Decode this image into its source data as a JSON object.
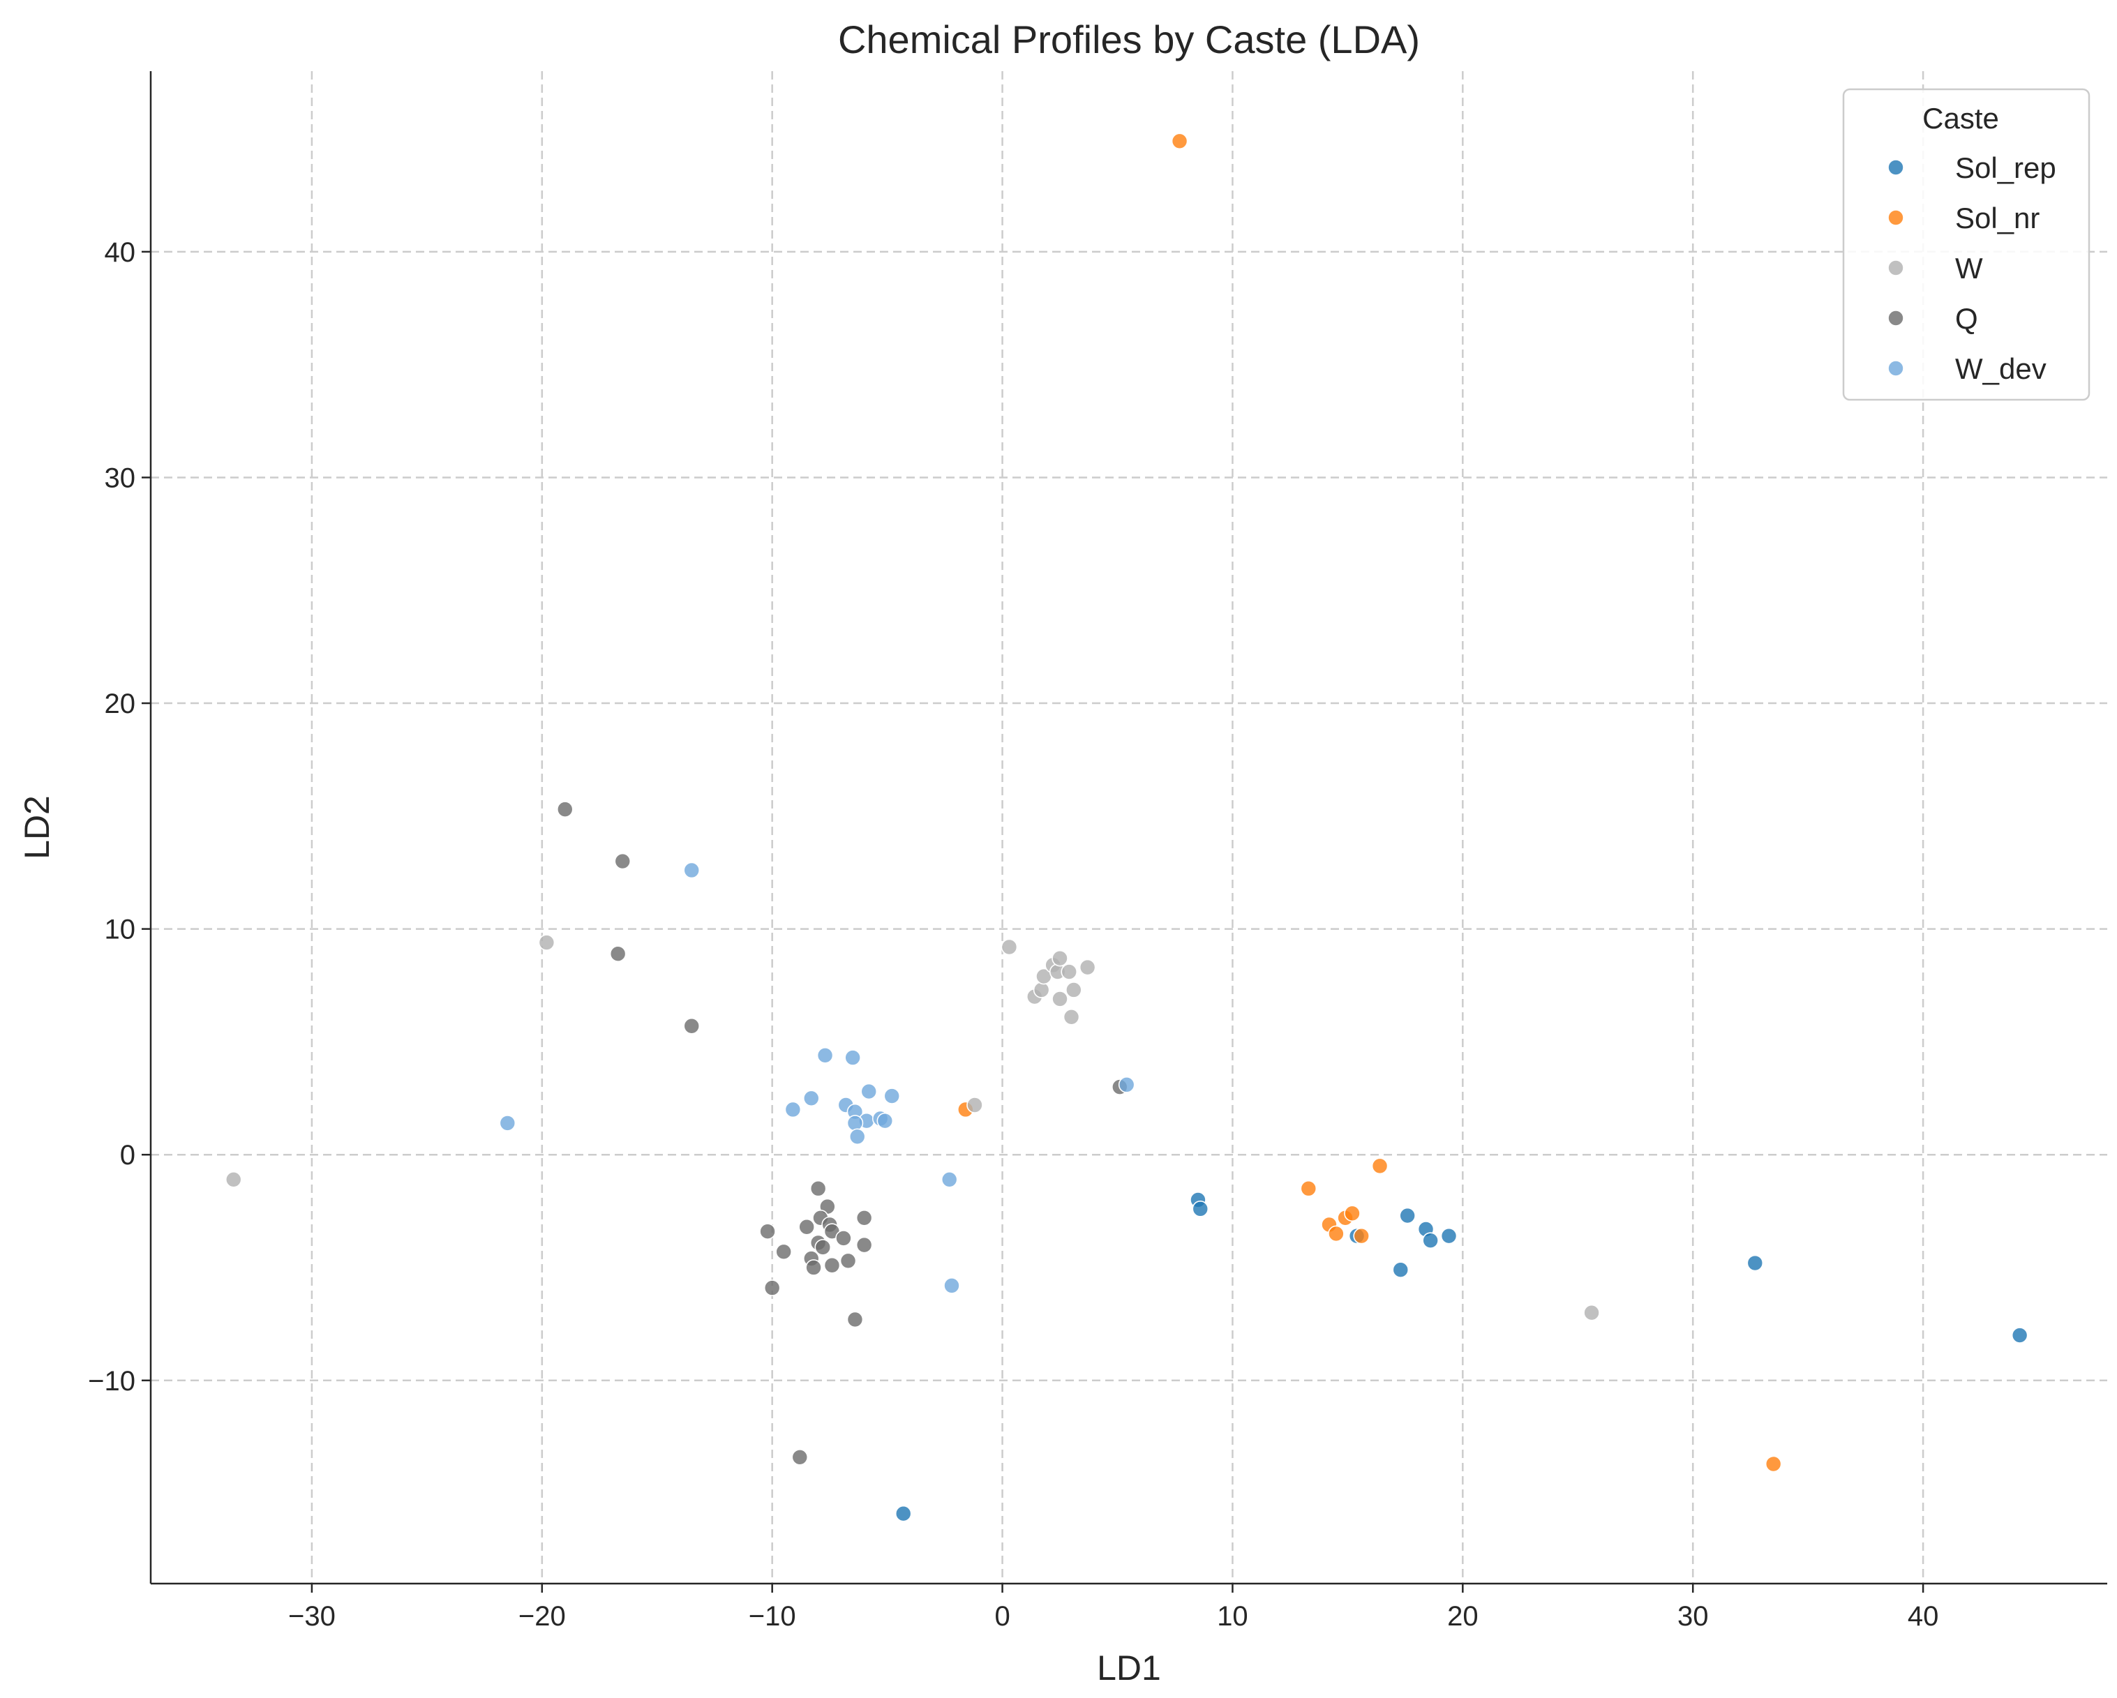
{
  "chart_data": {
    "type": "scatter",
    "title": "Chemical Profiles by Caste (LDA)",
    "xlabel": "LD1",
    "ylabel": "LD2",
    "xlim": [
      -37,
      48
    ],
    "ylim": [
      -19,
      48
    ],
    "xticks": [
      -30,
      -20,
      -10,
      0,
      10,
      20,
      30,
      40
    ],
    "yticks": [
      -10,
      0,
      10,
      20,
      30,
      40
    ],
    "xtick_labels": [
      "−30",
      "−20",
      "−10",
      "0",
      "10",
      "20",
      "30",
      "40"
    ],
    "ytick_labels": [
      "−10",
      "0",
      "10",
      "20",
      "30",
      "40"
    ],
    "grid": true,
    "legend": {
      "title": "Caste",
      "placement": "top-right"
    },
    "series": [
      {
        "name": "Sol_rep",
        "color": "#1f77b4",
        "points": [
          [
            8.5,
            -2.0
          ],
          [
            8.6,
            -2.4
          ],
          [
            17.3,
            -5.1
          ],
          [
            17.6,
            -2.7
          ],
          [
            18.4,
            -3.3
          ],
          [
            18.6,
            -3.8
          ],
          [
            19.4,
            -3.6
          ],
          [
            15.4,
            -3.6
          ],
          [
            32.7,
            -4.8
          ],
          [
            44.2,
            -8.0
          ],
          [
            -4.3,
            -15.9
          ]
        ]
      },
      {
        "name": "Sol_nr",
        "color": "#ff7f0e",
        "points": [
          [
            7.7,
            44.9
          ],
          [
            13.3,
            -1.5
          ],
          [
            14.2,
            -3.1
          ],
          [
            14.5,
            -3.5
          ],
          [
            14.9,
            -2.8
          ],
          [
            15.2,
            -2.6
          ],
          [
            15.6,
            -3.6
          ],
          [
            16.4,
            -0.5
          ],
          [
            -1.6,
            2.0
          ],
          [
            33.5,
            -13.7
          ]
        ]
      },
      {
        "name": "W",
        "color": "#b0b0b0",
        "points": [
          [
            0.3,
            9.2
          ],
          [
            1.4,
            7.0
          ],
          [
            1.7,
            7.3
          ],
          [
            1.8,
            7.9
          ],
          [
            2.2,
            8.4
          ],
          [
            2.4,
            8.1
          ],
          [
            2.5,
            8.7
          ],
          [
            2.5,
            6.9
          ],
          [
            2.9,
            8.1
          ],
          [
            3.0,
            6.1
          ],
          [
            3.1,
            7.3
          ],
          [
            3.7,
            8.3
          ],
          [
            -19.8,
            9.4
          ],
          [
            -33.4,
            -1.1
          ],
          [
            -1.2,
            2.2
          ],
          [
            25.6,
            -7.0
          ]
        ]
      },
      {
        "name": "Q",
        "color": "#6b6b6b",
        "points": [
          [
            -19.0,
            15.3
          ],
          [
            -16.5,
            13.0
          ],
          [
            -16.7,
            8.9
          ],
          [
            -13.5,
            5.7
          ],
          [
            5.1,
            3.0
          ],
          [
            -8.0,
            -1.5
          ],
          [
            -7.6,
            -2.3
          ],
          [
            -7.9,
            -2.8
          ],
          [
            -7.5,
            -3.1
          ],
          [
            -8.5,
            -3.2
          ],
          [
            -10.2,
            -3.4
          ],
          [
            -7.4,
            -3.4
          ],
          [
            -6.9,
            -3.7
          ],
          [
            -8.0,
            -3.9
          ],
          [
            -7.8,
            -4.1
          ],
          [
            -9.5,
            -4.3
          ],
          [
            -8.3,
            -4.6
          ],
          [
            -6.0,
            -4.0
          ],
          [
            -6.7,
            -4.7
          ],
          [
            -7.4,
            -4.9
          ],
          [
            -8.2,
            -5.0
          ],
          [
            -6.0,
            -2.8
          ],
          [
            -10.0,
            -5.9
          ],
          [
            -6.4,
            -7.3
          ],
          [
            -8.8,
            -13.4
          ]
        ]
      },
      {
        "name": "W_dev",
        "color": "#6fa8dc",
        "points": [
          [
            -13.5,
            12.6
          ],
          [
            -21.5,
            1.4
          ],
          [
            -7.7,
            4.4
          ],
          [
            -6.5,
            4.3
          ],
          [
            -5.8,
            2.8
          ],
          [
            -4.8,
            2.6
          ],
          [
            -8.3,
            2.5
          ],
          [
            -9.1,
            2.0
          ],
          [
            -6.8,
            2.2
          ],
          [
            -6.4,
            1.9
          ],
          [
            -5.9,
            1.5
          ],
          [
            -5.3,
            1.6
          ],
          [
            -5.1,
            1.5
          ],
          [
            -6.4,
            1.4
          ],
          [
            -6.3,
            0.8
          ],
          [
            5.4,
            3.1
          ],
          [
            -2.3,
            -1.1
          ],
          [
            -2.2,
            -5.8
          ]
        ]
      }
    ]
  }
}
